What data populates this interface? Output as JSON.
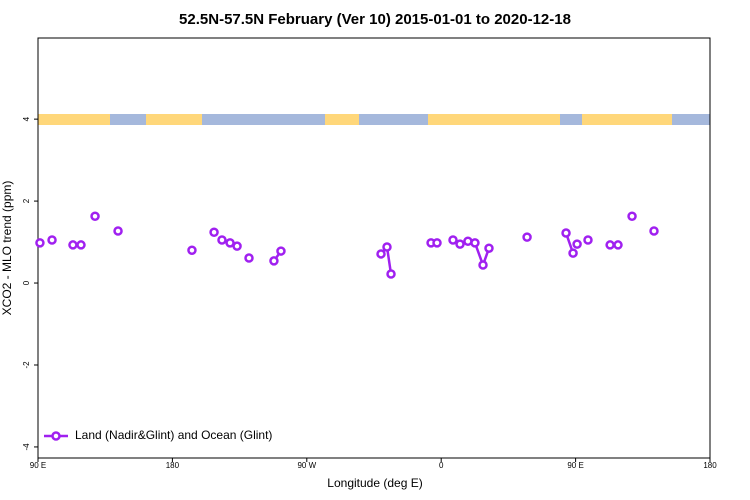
{
  "chart_data": {
    "type": "line",
    "title": "52.5N-57.5N February (Ver 10)   2015-01-01 to 2020-12-18",
    "x_label": "Longitude (deg E)",
    "y_label": "XCO2 - MLO trend (ppm)",
    "xlim": [
      90,
      540
    ],
    "ylim": [
      -4.27,
      5.98
    ],
    "xticks": [
      {
        "value": 90,
        "label": "90 E"
      },
      {
        "value": 180,
        "label": "180"
      },
      {
        "value": 270,
        "label": "90 W"
      },
      {
        "value": 360,
        "label": "0"
      },
      {
        "value": 450,
        "label": "90 E"
      },
      {
        "value": 540,
        "label": "180"
      }
    ],
    "yticks": [
      -4,
      -2,
      0,
      2,
      4
    ],
    "legend": "bottom-left",
    "series": [
      {
        "name": "Land (Nadir&Glint) and Ocean (Glint)",
        "color": "#a020f0",
        "x": [
          91.3,
          null,
          99.4,
          null,
          113.4,
          null,
          118.8,
          null,
          128.2,
          null,
          143.6,
          null,
          193.1,
          null,
          207.9,
          null,
          213.2,
          null,
          218.6,
          null,
          223.3,
          null,
          231.3,
          null,
          248.0,
          252.7,
          null,
          319.7,
          323.7,
          326.4,
          null,
          353.2,
          null,
          357.2,
          null,
          367.9,
          null,
          372.6,
          null,
          377.9,
          null,
          382.6,
          388.0,
          392.0,
          null,
          417.5,
          null,
          443.6,
          448.3,
          null,
          451.0,
          null,
          458.3,
          null,
          473.1,
          null,
          478.4,
          null,
          487.8,
          null,
          502.5
        ],
        "values": [
          0.98,
          null,
          1.05,
          null,
          0.93,
          null,
          0.93,
          null,
          1.63,
          null,
          1.27,
          null,
          0.8,
          null,
          1.24,
          null,
          1.05,
          null,
          0.98,
          null,
          0.9,
          null,
          0.61,
          null,
          0.54,
          0.78,
          null,
          0.71,
          0.88,
          0.22,
          null,
          0.98,
          null,
          0.98,
          null,
          1.05,
          null,
          0.95,
          null,
          1.02,
          null,
          0.98,
          0.44,
          0.85,
          null,
          1.12,
          null,
          1.22,
          0.73,
          null,
          0.95,
          null,
          1.05,
          null,
          0.93,
          null,
          0.93,
          null,
          1.63,
          null,
          1.27
        ]
      }
    ]
  }
}
